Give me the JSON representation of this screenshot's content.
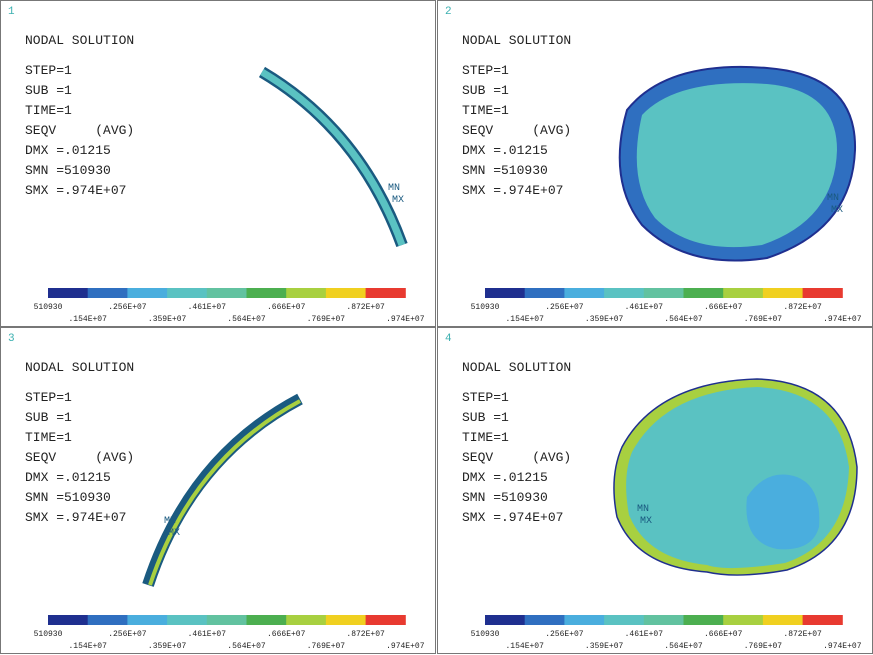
{
  "legend_colors": [
    "#1f2f8f",
    "#2f6fc0",
    "#4aaede",
    "#5ac2c2",
    "#62c2a0",
    "#4caf50",
    "#a8d040",
    "#f0d020",
    "#e83a30"
  ],
  "panels": [
    {
      "number": "1",
      "title": "NODAL SOLUTION",
      "info": [
        "STEP=1",
        "SUB =1",
        "TIME=1",
        "SEQV     (AVG)",
        "DMX =.01215",
        "SMN =510930",
        "SMX =.974E+07"
      ],
      "markers": [
        "MN",
        "MX"
      ],
      "legend_top": [
        "510930",
        ".256E+07",
        ".461E+07",
        ".666E+07",
        ".872E+07"
      ],
      "legend_bottom": [
        ".154E+07",
        ".359E+07",
        ".564E+07",
        ".769E+07",
        ".974E+07"
      ]
    },
    {
      "number": "2",
      "title": "NODAL SOLUTION",
      "info": [
        "STEP=1",
        "SUB =1",
        "TIME=1",
        "SEQV     (AVG)",
        "DMX =.01215",
        "SMN =510930",
        "SMX =.974E+07"
      ],
      "markers": [
        "MN",
        "MX"
      ],
      "legend_top": [
        "510930",
        ".256E+07",
        ".461E+07",
        ".666E+07",
        ".872E+07"
      ],
      "legend_bottom": [
        ".154E+07",
        ".359E+07",
        ".564E+07",
        ".769E+07",
        ".974E+07"
      ]
    },
    {
      "number": "3",
      "title": "NODAL SOLUTION",
      "info": [
        "STEP=1",
        "SUB =1",
        "TIME=1",
        "SEQV     (AVG)",
        "DMX =.01215",
        "SMN =510930",
        "SMX =.974E+07"
      ],
      "markers": [
        "MN",
        "MX"
      ],
      "legend_top": [
        "510930",
        ".256E+07",
        ".461E+07",
        ".666E+07",
        ".872E+07"
      ],
      "legend_bottom": [
        ".154E+07",
        ".359E+07",
        ".564E+07",
        ".769E+07",
        ".974E+07"
      ]
    },
    {
      "number": "4",
      "title": "NODAL SOLUTION",
      "info": [
        "STEP=1",
        "SUB =1",
        "TIME=1",
        "SEQV     (AVG)",
        "DMX =.01215",
        "SMN =510930",
        "SMX =.974E+07"
      ],
      "markers": [
        "MN",
        "MX"
      ],
      "legend_top": [
        "510930",
        ".256E+07",
        ".461E+07",
        ".666E+07",
        ".872E+07"
      ],
      "legend_bottom": [
        ".154E+07",
        ".359E+07",
        ".564E+07",
        ".769E+07",
        ".974E+07"
      ]
    }
  ]
}
